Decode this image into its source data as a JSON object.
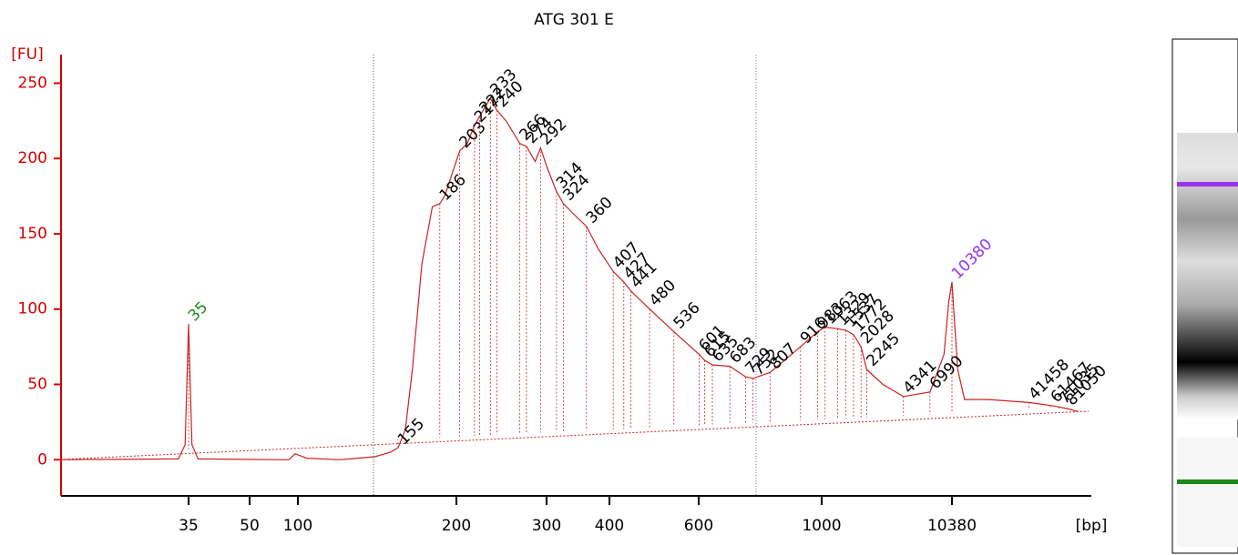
{
  "chart_data": {
    "type": "line",
    "title": "ATG 301 E",
    "y_label": "[FU]",
    "x_label": "[bp]",
    "ylim": [
      -24,
      269
    ],
    "yticks": [
      0,
      50,
      100,
      150,
      200,
      250
    ],
    "xticks": [
      35,
      50,
      100,
      200,
      300,
      400,
      600,
      1000,
      10380
    ],
    "color": "#cc2222",
    "series": [
      {
        "name": "ATG 301 E",
        "color": "#cc2222",
        "x": [
          16,
          33,
          34.3,
          35,
          35.7,
          37,
          88,
          96,
          104,
          120,
          140,
          150,
          155,
          160,
          165,
          172,
          180,
          186,
          190,
          203,
          210,
          217,
          222,
          233,
          240,
          250,
          266,
          274,
          285,
          292,
          300,
          314,
          324,
          340,
          360,
          380,
          407,
          427,
          441,
          480,
          536,
          601,
          615,
          635,
          683,
          729,
          752,
          807,
          916,
          983,
          1063,
          1329,
          1537,
          1772,
          2028,
          2245,
          3000,
          4341,
          7000,
          9000,
          9800,
          10380,
          10700,
          11500,
          13000,
          20000,
          41458,
          61467,
          71035,
          81050,
          100000
        ],
        "values": [
          0,
          0.5,
          10,
          90,
          10,
          0.5,
          0,
          4,
          1,
          0,
          2,
          5,
          8,
          20,
          60,
          130,
          168,
          170,
          175,
          205,
          210,
          222,
          228,
          240,
          232,
          225,
          210,
          208,
          198,
          207,
          195,
          178,
          170,
          163,
          155,
          140,
          125,
          118,
          112,
          100,
          85,
          70,
          66,
          63,
          62,
          55,
          54,
          58,
          75,
          85,
          88,
          87,
          86,
          83,
          75,
          60,
          50,
          42,
          45,
          70,
          105,
          118,
          100,
          60,
          40,
          40,
          38,
          36,
          35,
          34,
          32
        ]
      }
    ],
    "markers": [
      {
        "bp": 35,
        "color": "#1a8a1a"
      },
      {
        "bp": 10380,
        "color": "#9933ee"
      }
    ],
    "peaks": [
      155,
      186,
      203,
      217,
      222,
      233,
      240,
      266,
      274,
      292,
      314,
      324,
      360,
      407,
      427,
      441,
      480,
      536,
      601,
      615,
      635,
      683,
      729,
      752,
      807,
      916,
      983,
      1063,
      1329,
      1537,
      1772,
      2028,
      2245,
      4341,
      6990,
      41458,
      61467,
      71035,
      81050
    ]
  }
}
